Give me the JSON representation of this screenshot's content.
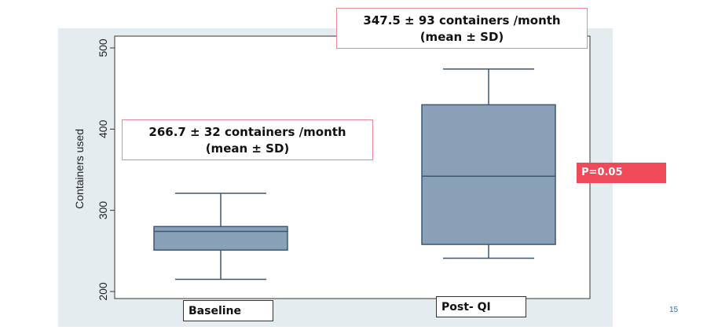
{
  "chart_data": {
    "type": "box",
    "ylabel": "Containers used",
    "ylim": [
      200,
      500
    ],
    "yticks": [
      200,
      300,
      400,
      500
    ],
    "categories": [
      "Baseline",
      "Post- QI"
    ],
    "boxes": [
      {
        "category": "Baseline",
        "min": 215,
        "q1": 251,
        "median": 274,
        "q3": 280,
        "max": 321
      },
      {
        "category": "Post- QI",
        "min": 241,
        "q1": 258,
        "median": 342,
        "q3": 430,
        "max": 474
      }
    ],
    "box_color": "#8aa0b6",
    "annotations": {
      "baseline_line1": "266.7  ± 32 containers /month",
      "baseline_line2": "(mean ± SD)",
      "postqi_line1": "347.5  ± 93 containers /month",
      "postqi_line2": "(mean ± SD)",
      "pvalue": "P=0.05"
    }
  },
  "slide_number": "15"
}
